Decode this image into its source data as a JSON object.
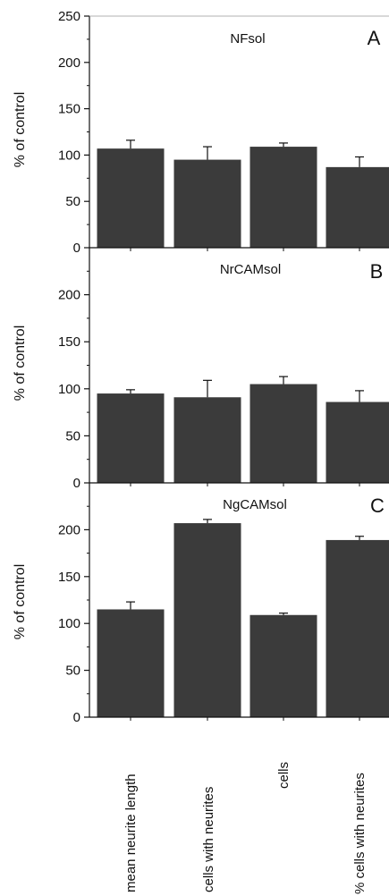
{
  "figure": {
    "categories": [
      "mean neurite length",
      "cells with neurites",
      "cells",
      "% cells with neurites"
    ],
    "bar_color": "#3b3b3b",
    "axis_color": "#111111"
  },
  "chart_data": [
    {
      "type": "bar",
      "title": "NFsol",
      "panel_label": "A",
      "categories": [
        "mean neurite length",
        "cells with neurites",
        "cells",
        "% cells with neurites"
      ],
      "values": [
        107,
        95,
        109,
        87
      ],
      "errors": [
        9,
        14,
        4,
        11
      ],
      "ylabel": "% of control",
      "ylim": [
        0,
        250
      ],
      "yticks": [
        "0",
        "50",
        "100",
        "150",
        "200",
        "250"
      ]
    },
    {
      "type": "bar",
      "title": "NrCAMsol",
      "panel_label": "B",
      "categories": [
        "mean neurite length",
        "cells with neurites",
        "cells",
        "% cells with neurites"
      ],
      "values": [
        95,
        91,
        105,
        86
      ],
      "errors": [
        4,
        18,
        8,
        12
      ],
      "ylabel": "% of control",
      "ylim": [
        0,
        250
      ],
      "yticks": [
        "0",
        "50",
        "100",
        "150",
        "200"
      ]
    },
    {
      "type": "bar",
      "title": "NgCAMsol",
      "panel_label": "C",
      "categories": [
        "mean neurite length",
        "cells with neurites",
        "cells",
        "% cells with neurites"
      ],
      "values": [
        115,
        207,
        109,
        189
      ],
      "errors": [
        8,
        4,
        2,
        4
      ],
      "ylabel": "% of control",
      "ylim": [
        0,
        250
      ],
      "yticks": [
        "0",
        "50",
        "100",
        "150",
        "200"
      ]
    }
  ]
}
